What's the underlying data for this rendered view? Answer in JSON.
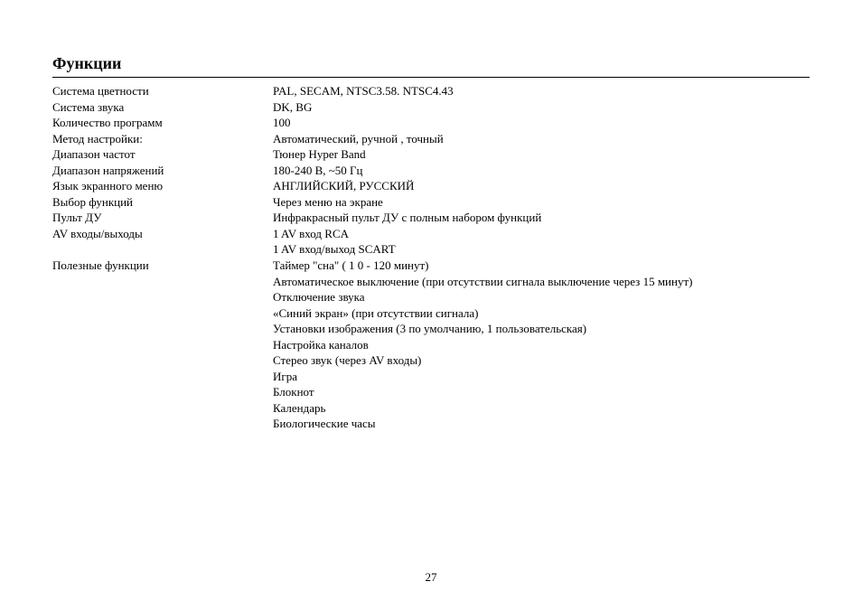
{
  "title": "Функции",
  "page_number": "27",
  "specs": [
    {
      "label": "Система цветности",
      "value": "PAL, SECAM, NTSC3.58. NTSC4.43"
    },
    {
      "label": "Система звука",
      "value": "DK, BG"
    },
    {
      "label": "Количество программ",
      "value": "100"
    },
    {
      "label": "Метод настройки:",
      "value": "Автоматический,  ручной , точный"
    },
    {
      "label": "Диапазон частот",
      "value": "Тюнер Hyper Band"
    },
    {
      "label": "Диапазон напряжений",
      "value": "180-240 В, ~50 Гц"
    },
    {
      "label": "Язык экранного меню",
      "value": "АНГЛИЙСКИЙ, РУССКИЙ"
    },
    {
      "label": "Выбор функций",
      "value": "Через меню на экране"
    },
    {
      "label": "Пульт ДУ",
      "value": "Инфракрасный пульт ДУ с полным набором функций"
    },
    {
      "label": "AV входы/выходы",
      "value": "1 AV вход RCA"
    },
    {
      "label": "",
      "value": "1 AV вход/выход SCART"
    },
    {
      "label": "Полезные функции",
      "value": "Таймер \"сна\" ( 1 0 - 120 минут)"
    },
    {
      "label": "",
      "value": "Автоматическое выключение (при отсутствии сигнала выключение через 15 минут)"
    },
    {
      "label": "",
      "value": "Отключение звука"
    },
    {
      "label": "",
      "value": "«Синий экран» (при отсутствии сигнала)"
    },
    {
      "label": "",
      "value": "Установки изображения (3 по умолчанию, 1 пользовательская)"
    },
    {
      "label": "",
      "value": "Настройка каналов"
    },
    {
      "label": "",
      "value": "Стерео звук (через AV входы)"
    },
    {
      "label": "",
      "value": "Игра"
    },
    {
      "label": "",
      "value": "Блокнот"
    },
    {
      "label": "",
      "value": "Календарь"
    },
    {
      "label": "",
      "value": "Биологические часы"
    }
  ]
}
